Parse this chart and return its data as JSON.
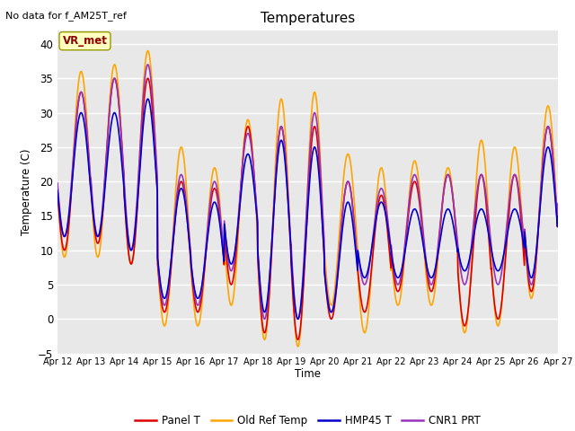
{
  "title": "Temperatures",
  "xlabel": "Time",
  "ylabel": "Temperature (C)",
  "top_left_text": "No data for f_AM25T_ref",
  "annotation_text": "VR_met",
  "ylim": [
    -5,
    42
  ],
  "xlim": [
    0,
    360
  ],
  "plot_bg_color": "#e8e8e8",
  "grid_color": "white",
  "fig_bg_color": "#ffffff",
  "series": {
    "Panel T": {
      "color": "#dd0000",
      "lw": 1.2,
      "zorder": 3
    },
    "Old Ref Temp": {
      "color": "#ffa500",
      "lw": 1.2,
      "zorder": 2
    },
    "HMP45 T": {
      "color": "#0000cc",
      "lw": 1.2,
      "zorder": 4
    },
    "CNR1 PRT": {
      "color": "#9933bb",
      "lw": 1.2,
      "zorder": 3
    }
  },
  "x_tick_labels": [
    "Apr 12",
    "Apr 13",
    "Apr 14",
    "Apr 15",
    "Apr 16",
    "Apr 17",
    "Apr 18",
    "Apr 19",
    "Apr 20",
    "Apr 21",
    "Apr 22",
    "Apr 23",
    "Apr 24",
    "Apr 25",
    "Apr 26",
    "Apr 27"
  ],
  "x_tick_positions": [
    0,
    24,
    48,
    72,
    96,
    120,
    144,
    168,
    192,
    216,
    240,
    264,
    288,
    312,
    336,
    360
  ],
  "yticks": [
    -5,
    0,
    5,
    10,
    15,
    20,
    25,
    30,
    35,
    40
  ],
  "panel_mins": [
    10,
    11,
    8,
    1,
    1,
    5,
    -2,
    -3,
    0,
    1,
    4,
    4,
    -1,
    0,
    4,
    8
  ],
  "panel_maxs": [
    33,
    35,
    35,
    20,
    19,
    28,
    28,
    28,
    20,
    18,
    20,
    21,
    21,
    21,
    28,
    30
  ],
  "old_mins": [
    9,
    9,
    8,
    -1,
    -1,
    2,
    -3,
    -4,
    2,
    -2,
    2,
    2,
    -2,
    -1,
    3,
    8
  ],
  "old_maxs": [
    36,
    37,
    39,
    25,
    22,
    29,
    32,
    33,
    24,
    22,
    23,
    22,
    26,
    25,
    31,
    31
  ],
  "hmp_mins": [
    12,
    12,
    10,
    3,
    3,
    8,
    1,
    0,
    1,
    6,
    6,
    6,
    7,
    7,
    6,
    9
  ],
  "hmp_maxs": [
    30,
    30,
    32,
    19,
    17,
    24,
    26,
    25,
    17,
    17,
    16,
    16,
    16,
    16,
    25,
    25
  ],
  "cnr1_mins": [
    12,
    12,
    10,
    2,
    2,
    7,
    0,
    0,
    1,
    5,
    5,
    5,
    5,
    5,
    5,
    9
  ],
  "cnr1_maxs": [
    33,
    35,
    37,
    21,
    20,
    27,
    28,
    30,
    20,
    19,
    21,
    21,
    21,
    21,
    28,
    30
  ]
}
